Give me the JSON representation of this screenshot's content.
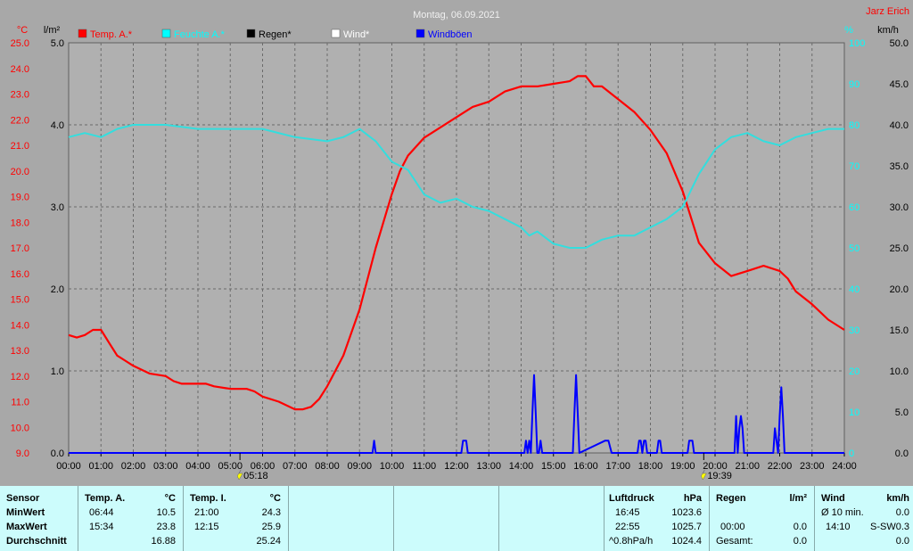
{
  "chart_data": {
    "type": "line",
    "title": "Montag, 06.09.2021",
    "station": "Jarz Erich",
    "axes": {
      "temp": {
        "unit": "°C",
        "range": [
          9.0,
          25.0
        ],
        "ticks": [
          "25.0",
          "24.0",
          "23.0",
          "22.0",
          "21.0",
          "20.0",
          "19.0",
          "18.0",
          "17.0",
          "16.0",
          "15.0",
          "14.0",
          "13.0",
          "12.0",
          "11.0",
          "10.0",
          "9.0"
        ]
      },
      "rain": {
        "unit": "l/m²",
        "range": [
          0.0,
          5.0
        ],
        "ticks": [
          "5.0",
          "4.0",
          "3.0",
          "2.0",
          "1.0",
          "0.0"
        ]
      },
      "humidity": {
        "unit": "%",
        "range": [
          0,
          100
        ],
        "ticks": [
          "100",
          "90",
          "80",
          "70",
          "60",
          "50",
          "40",
          "30",
          "20",
          "10",
          "0"
        ]
      },
      "wind": {
        "unit": "km/h",
        "range": [
          0.0,
          50.0
        ],
        "ticks": [
          "50.0",
          "45.0",
          "40.0",
          "35.0",
          "30.0",
          "25.0",
          "20.0",
          "15.0",
          "10.0",
          "5.0",
          "0.0"
        ]
      }
    },
    "x_ticks": [
      "00:00",
      "01:00",
      "02:00",
      "03:00",
      "04:00",
      "05:00",
      "06:00",
      "07:00",
      "08:00",
      "09:00",
      "10:00",
      "11:00",
      "12:00",
      "13:00",
      "14:00",
      "15:00",
      "16:00",
      "17:00",
      "18:00",
      "19:00",
      "20:00",
      "21:00",
      "22:00",
      "23:00",
      "24:00"
    ],
    "sunrise": "05:18",
    "sunset": "19:39",
    "grid": true,
    "legend": [
      {
        "label": "Temp. A.*",
        "color": "#ff0000"
      },
      {
        "label": "Feuchte A.*",
        "color": "#00ffff"
      },
      {
        "label": "Regen*",
        "color": "#000000"
      },
      {
        "label": "Wind*",
        "color": "#ffffff"
      },
      {
        "label": "Windböen",
        "color": "#0000ff"
      }
    ],
    "series": [
      {
        "name": "Temp. A.*",
        "axis": "temp",
        "color": "#ff0000",
        "x": [
          0,
          0.25,
          0.5,
          0.75,
          1,
          1.25,
          1.5,
          1.75,
          2,
          2.5,
          3,
          3.25,
          3.5,
          4,
          4.25,
          4.5,
          5,
          5.25,
          5.5,
          5.75,
          6,
          6.5,
          7,
          7.25,
          7.5,
          7.75,
          8,
          8.5,
          9,
          9.5,
          10,
          10.25,
          10.5,
          11,
          11.5,
          12,
          12.5,
          13,
          13.5,
          14,
          14.25,
          14.5,
          15,
          15.5,
          15.75,
          16,
          16.25,
          16.5,
          17,
          17.5,
          18,
          18.5,
          19,
          19.5,
          20,
          20.5,
          21,
          21.5,
          22,
          22.25,
          22.5,
          23,
          23.5,
          24
        ],
        "y": [
          13.6,
          13.5,
          13.6,
          13.8,
          13.8,
          13.3,
          12.8,
          12.6,
          12.4,
          12.1,
          12.0,
          11.8,
          11.7,
          11.7,
          11.7,
          11.6,
          11.5,
          11.5,
          11.5,
          11.4,
          11.2,
          11.0,
          10.7,
          10.7,
          10.8,
          11.1,
          11.6,
          12.8,
          14.6,
          17.0,
          19.1,
          20.0,
          20.6,
          21.3,
          21.7,
          22.1,
          22.5,
          22.7,
          23.1,
          23.3,
          23.3,
          23.3,
          23.4,
          23.5,
          23.7,
          23.7,
          23.3,
          23.3,
          22.8,
          22.3,
          21.6,
          20.7,
          19.2,
          17.2,
          16.4,
          15.9,
          16.1,
          16.3,
          16.1,
          15.8,
          15.3,
          14.8,
          14.2,
          13.8
        ]
      },
      {
        "name": "Feuchte A.*",
        "axis": "humidity",
        "color": "#33dede",
        "x": [
          0,
          0.5,
          1,
          1.5,
          2,
          3,
          4,
          5,
          6,
          7,
          8,
          8.5,
          9,
          9.5,
          10,
          10.5,
          11,
          11.5,
          12,
          12.5,
          13,
          13.5,
          14,
          14.25,
          14.5,
          15,
          15.5,
          16,
          16.5,
          17,
          17.5,
          18,
          18.5,
          19,
          19.5,
          20,
          20.5,
          21,
          21.5,
          22,
          22.5,
          23,
          23.5,
          24
        ],
        "y": [
          77,
          78,
          77,
          79,
          80,
          80,
          79,
          79,
          79,
          77,
          76,
          77,
          79,
          76,
          71,
          69,
          63,
          61,
          62,
          60,
          59,
          57,
          55,
          53,
          54,
          51,
          50,
          50,
          52,
          53,
          53,
          55,
          57,
          60,
          68,
          74,
          77,
          78,
          76,
          75,
          77,
          78,
          79,
          79
        ]
      },
      {
        "name": "Windböen",
        "axis": "wind",
        "color": "#0000ff",
        "x": [
          0,
          9.4,
          9.45,
          9.5,
          12.15,
          12.2,
          12.3,
          12.35,
          14.1,
          14.15,
          14.2,
          14.25,
          14.3,
          14.35,
          14.4,
          14.45,
          14.5,
          14.55,
          14.6,
          14.65,
          14.7,
          14.75,
          15.6,
          15.65,
          15.7,
          15.75,
          15.8,
          16.6,
          16.7,
          16.8,
          17.6,
          17.65,
          17.7,
          17.75,
          17.8,
          17.85,
          17.9,
          18.2,
          18.25,
          18.3,
          18.35,
          18.4,
          19.15,
          19.2,
          19.3,
          19.35,
          20.6,
          20.65,
          20.7,
          20.75,
          20.8,
          20.85,
          20.9,
          20.95,
          21.0,
          21.1,
          21.8,
          21.85,
          21.9,
          21.95,
          22.0,
          22.05,
          22.1,
          22.15,
          22.2,
          24
        ],
        "y": [
          0,
          0,
          1.5,
          0,
          0,
          1.5,
          1.5,
          0,
          0,
          1.5,
          0,
          1.5,
          0,
          5,
          9.5,
          5,
          0,
          0,
          1.5,
          0,
          0,
          0,
          0,
          5,
          9.5,
          5,
          0,
          1.5,
          1.5,
          0,
          0,
          1.5,
          1.5,
          0,
          1.5,
          1.5,
          0,
          0,
          1.5,
          1.5,
          0,
          0,
          0,
          1.5,
          1.5,
          0,
          0,
          4.5,
          0,
          3,
          4.5,
          3,
          0,
          0,
          0,
          0,
          0,
          3,
          1.5,
          0,
          4.5,
          8,
          4.5,
          0,
          0,
          0
        ]
      }
    ]
  },
  "summary": {
    "sensor": {
      "header": "Sensor",
      "rows": [
        "MinWert",
        "MaxWert",
        "Durchschnitt"
      ]
    },
    "temp_a": {
      "header": "Temp. A.",
      "unit": "°C",
      "min_time": "06:44",
      "min": "10.5",
      "max_time": "15:34",
      "max": "23.8",
      "avg": "16.88"
    },
    "temp_i": {
      "header": "Temp. I.",
      "unit": "°C",
      "min_time": "21:00",
      "min": "24.3",
      "max_time": "12:15",
      "max": "25.9",
      "avg": "25.24"
    },
    "pressure": {
      "header": "Luftdruck",
      "unit": "hPa",
      "min_time": "16:45",
      "min": "1023.6",
      "max_time": "22:55",
      "max": "1025.7",
      "trend_label": "^0.8hPa/h",
      "trend_value": "1024.4"
    },
    "rain": {
      "header": "Regen",
      "unit": "l/m²",
      "max_time": "00:00",
      "max": "0.0",
      "total_label": "Gesamt:",
      "total": "0.0"
    },
    "wind": {
      "header": "Wind",
      "unit": "km/h",
      "min_label": "Ø 10 min.",
      "min": "0.0",
      "max_time": "14:10",
      "max_label": "S-SW",
      "max": "0.3",
      "avg": "0.0"
    }
  }
}
